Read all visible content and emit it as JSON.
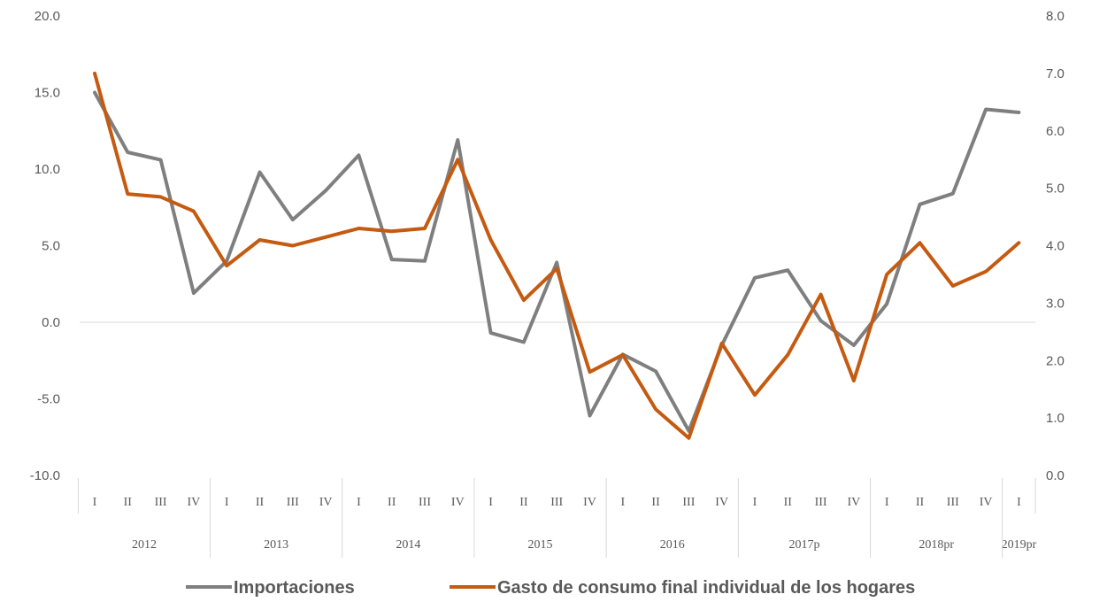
{
  "chart_data": {
    "type": "line",
    "title": "",
    "years": [
      "2012",
      "2013",
      "2014",
      "2015",
      "2016",
      "2017p",
      "2018pr",
      "2019pr"
    ],
    "quarters": [
      [
        "I",
        "II",
        "III",
        "IV"
      ],
      [
        "I",
        "II",
        "III",
        "IV"
      ],
      [
        "I",
        "II",
        "III",
        "IV"
      ],
      [
        "I",
        "II",
        "III",
        "IV"
      ],
      [
        "I",
        "II",
        "III",
        "IV"
      ],
      [
        "I",
        "II",
        "III",
        "IV"
      ],
      [
        "I",
        "II",
        "III",
        "IV"
      ],
      [
        "I"
      ]
    ],
    "y_left": {
      "min": -10,
      "max": 20,
      "step": 5,
      "ticks": [
        "-10.0",
        "-5.0",
        "0.0",
        "5.0",
        "10.0",
        "15.0",
        "20.0"
      ]
    },
    "y_right": {
      "min": 0,
      "max": 8,
      "step": 1,
      "ticks": [
        "0.0",
        "1.0",
        "2.0",
        "3.0",
        "4.0",
        "5.0",
        "6.0",
        "7.0",
        "8.0"
      ]
    },
    "grid": false,
    "legend_position": "bottom",
    "series": [
      {
        "name": "Importaciones",
        "axis": "left",
        "color": "#7f7f7f",
        "values": [
          15.0,
          11.1,
          10.6,
          1.9,
          4.0,
          9.8,
          6.7,
          8.6,
          10.9,
          4.1,
          4.0,
          11.9,
          -0.7,
          -1.3,
          3.9,
          -6.1,
          -2.1,
          -3.2,
          -7.1,
          -1.5,
          2.9,
          3.4,
          0.1,
          -1.5,
          1.2,
          7.7,
          8.4,
          13.9,
          13.7
        ]
      },
      {
        "name": "Gasto de consumo final individual de los hogares",
        "axis": "right",
        "color": "#c55a11",
        "values": [
          7.0,
          4.9,
          4.85,
          4.6,
          3.65,
          4.1,
          4.0,
          4.15,
          4.3,
          4.25,
          4.3,
          5.5,
          4.1,
          3.05,
          3.6,
          1.8,
          2.1,
          1.15,
          0.65,
          2.3,
          1.4,
          2.1,
          3.15,
          1.65,
          3.5,
          4.05,
          3.3,
          3.55,
          4.05
        ]
      }
    ]
  }
}
